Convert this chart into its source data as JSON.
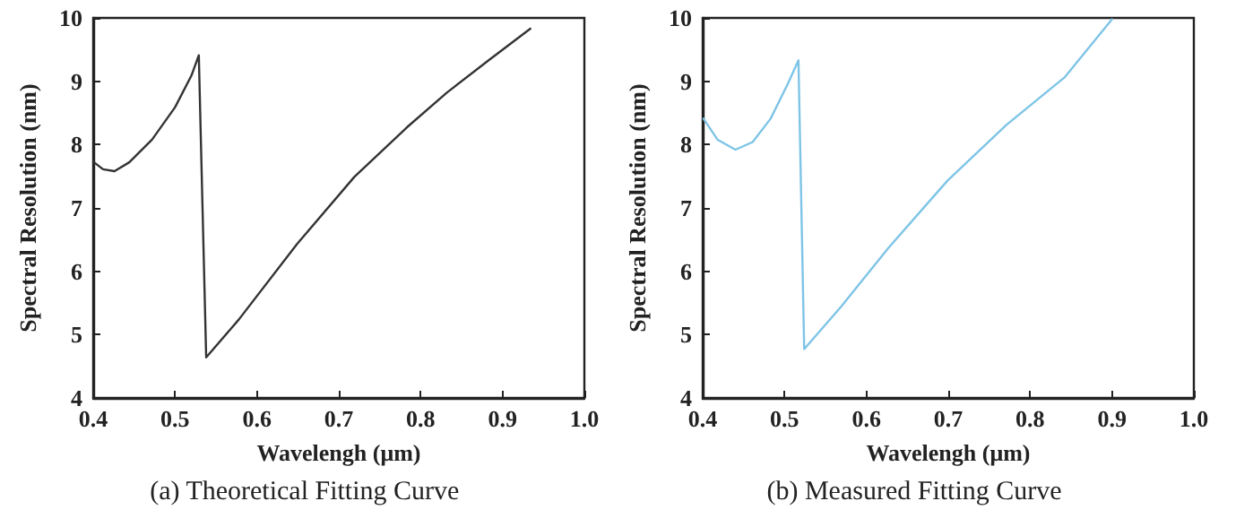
{
  "chart_data": [
    {
      "type": "line",
      "xlabel": "Wavelengh (μm)",
      "ylabel": "Spectral Resolution (nm)",
      "annotations": [
        "(a) Theoretical Fitting Curve"
      ],
      "xlim": [
        0.4,
        1.0
      ],
      "ylim": [
        4,
        10
      ],
      "xticks": [
        0.4,
        0.5,
        0.6,
        0.7,
        0.8,
        0.9,
        {
          "value": 1,
          "label": "1.0"
        }
      ],
      "yticks": [
        4,
        5,
        6,
        7,
        8,
        9,
        10
      ],
      "grid": false,
      "marker": "none",
      "line_style": "solid",
      "series": [
        {
          "color": "#333333",
          "x": [
            0.4,
            0.412,
            0.426,
            0.444,
            0.472,
            0.5,
            0.52,
            0.529,
            0.538,
            0.578,
            0.649,
            0.719,
            0.783,
            0.832,
            0.882,
            0.934
          ],
          "values": [
            7.73,
            7.61,
            7.58,
            7.72,
            8.08,
            8.59,
            9.09,
            9.41,
            4.64,
            5.24,
            6.43,
            7.49,
            8.27,
            8.82,
            9.32,
            9.83
          ]
        }
      ]
    },
    {
      "type": "line",
      "xlabel": "Wavelengh (μm)",
      "ylabel": "Spectral Resolution (nm)",
      "annotations": [
        "(b) Measured Fitting Curve"
      ],
      "xlim": [
        0.4,
        1.0
      ],
      "ylim": [
        4,
        10
      ],
      "xticks": [
        0.4,
        0.5,
        0.6,
        0.7,
        0.8,
        0.9,
        {
          "value": 1,
          "label": "1.0"
        }
      ],
      "yticks": [
        4,
        5,
        6,
        7,
        8,
        9,
        10
      ],
      "grid": false,
      "marker": "none",
      "line_style": "solid",
      "series": [
        {
          "color": "#7ec4e6",
          "x": [
            0.401,
            0.418,
            0.44,
            0.461,
            0.483,
            0.504,
            0.517,
            0.524,
            0.569,
            0.627,
            0.699,
            0.771,
            0.842,
            0.9
          ],
          "values": [
            8.41,
            8.08,
            7.92,
            8.04,
            8.41,
            8.96,
            9.33,
            4.77,
            5.44,
            6.37,
            7.43,
            8.31,
            9.06,
            9.98
          ]
        }
      ]
    }
  ]
}
